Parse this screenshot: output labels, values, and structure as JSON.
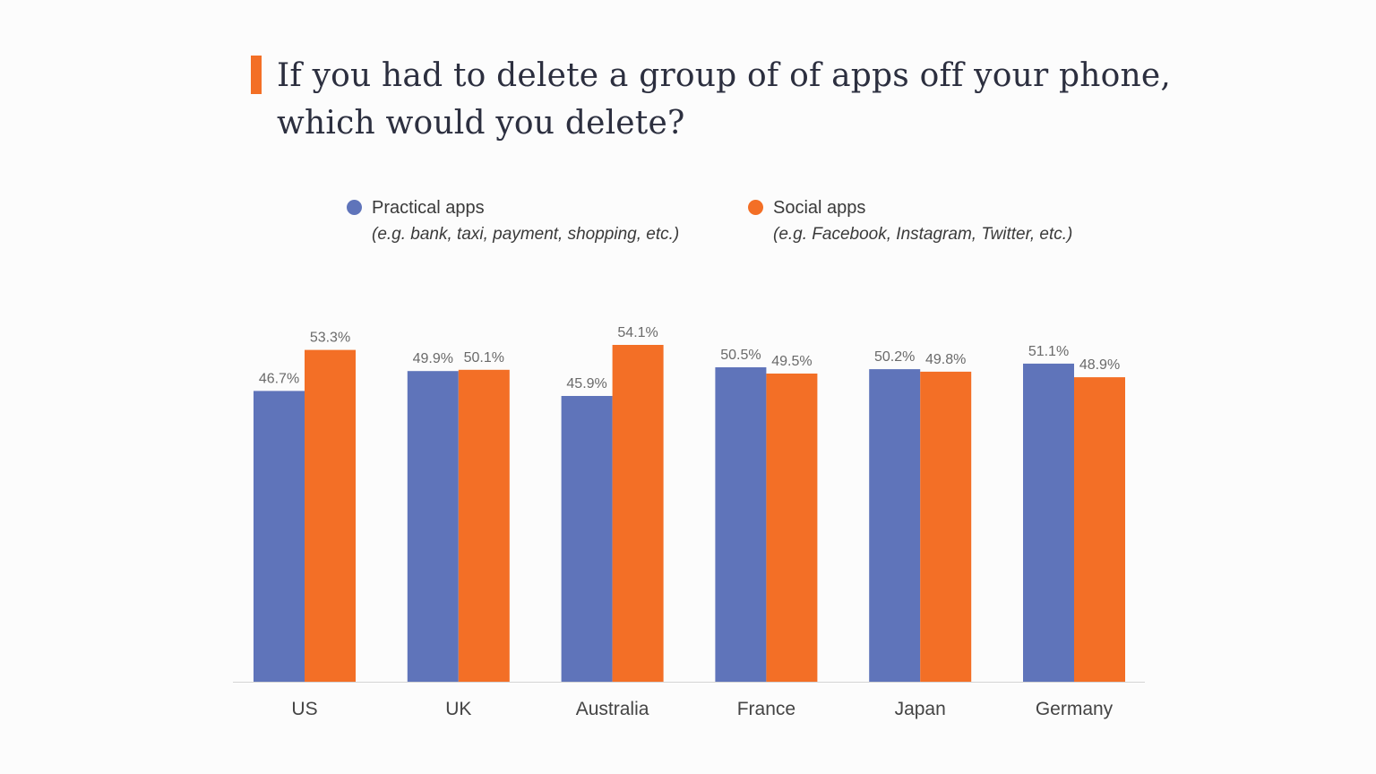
{
  "title_lines": [
    "If you had to delete a group of of apps off your phone,",
    "which would you delete?"
  ],
  "legend": [
    {
      "name": "Practical apps",
      "note": "(e.g. bank, taxi, payment, shopping, etc.)",
      "color": "#5f74ba"
    },
    {
      "name": "Social apps",
      "note": "(e.g. Facebook, Instagram, Twitter, etc.)",
      "color": "#f36f26"
    }
  ],
  "chart_data": {
    "type": "bar",
    "categories": [
      "US",
      "UK",
      "Australia",
      "France",
      "Japan",
      "Germany"
    ],
    "series": [
      {
        "name": "Practical apps",
        "color": "#5f74ba",
        "values": [
          46.7,
          49.9,
          45.9,
          50.5,
          50.2,
          51.1
        ],
        "labels": [
          "46.7%",
          "49.9%",
          "45.9%",
          "50.5%",
          "50.2%",
          "51.1%"
        ]
      },
      {
        "name": "Social apps",
        "color": "#f36f26",
        "values": [
          53.3,
          50.1,
          54.1,
          49.5,
          49.8,
          48.9
        ],
        "labels": [
          "53.3%",
          "50.1%",
          "54.1%",
          "49.5%",
          "49.8%",
          "48.9%"
        ]
      }
    ],
    "title": "If you had to delete a group of of apps off your phone, which would you delete?",
    "xlabel": "",
    "ylabel": "",
    "ylim": [
      0,
      54.1
    ],
    "grid": false,
    "legend_position": "top"
  }
}
